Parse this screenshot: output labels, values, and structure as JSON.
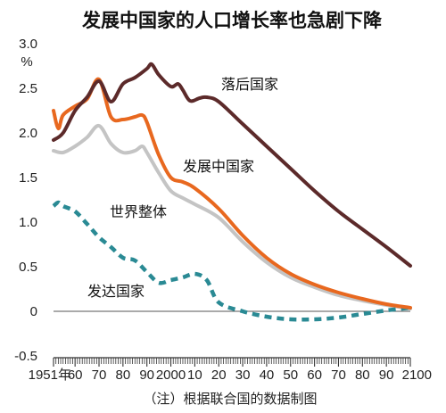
{
  "chart_data": {
    "type": "line",
    "title": "发展中国家的人口增长率也急剧下降",
    "unit": "%",
    "note": "（注）根据联合国的数据制图",
    "ylim": [
      -0.5,
      3.0
    ],
    "y_ticks": [
      "3.0",
      "2.5",
      "2.0",
      "1.5",
      "1.0",
      "0.5",
      "0",
      "-0.5"
    ],
    "y_tick_values": [
      3.0,
      2.5,
      2.0,
      1.5,
      1.0,
      0.5,
      0,
      -0.5
    ],
    "xlim": [
      1951,
      2100
    ],
    "x_ticks": [
      "1951年",
      "60",
      "70",
      "80",
      "90",
      "2000",
      "10",
      "20",
      "30",
      "40",
      "50",
      "60",
      "70",
      "80",
      "90",
      "2100"
    ],
    "x_tick_values": [
      1951,
      1960,
      1970,
      1980,
      1990,
      2000,
      2010,
      2020,
      2030,
      2040,
      2050,
      2060,
      2070,
      2080,
      2090,
      2100
    ],
    "grid": false,
    "zero_line": true,
    "series": [
      {
        "name": "落后国家",
        "color": "#5c2a2a",
        "style": "solid",
        "x": [
          1951,
          1955,
          1960,
          1965,
          1970,
          1975,
          1980,
          1985,
          1990,
          1992,
          1995,
          2000,
          2003,
          2005,
          2008,
          2012,
          2015,
          2020,
          2030,
          2040,
          2050,
          2060,
          2070,
          2080,
          2090,
          2100
        ],
        "values": [
          1.92,
          2.0,
          2.25,
          2.4,
          2.58,
          2.35,
          2.55,
          2.62,
          2.72,
          2.77,
          2.65,
          2.52,
          2.55,
          2.48,
          2.36,
          2.39,
          2.4,
          2.35,
          2.1,
          1.85,
          1.6,
          1.35,
          1.12,
          0.92,
          0.72,
          0.51
        ]
      },
      {
        "name": "发展中国家",
        "color": "#e8681f",
        "style": "solid",
        "x": [
          1951,
          1953,
          1955,
          1960,
          1965,
          1970,
          1975,
          1980,
          1985,
          1988,
          1990,
          1995,
          2000,
          2005,
          2010,
          2020,
          2030,
          2040,
          2050,
          2060,
          2070,
          2080,
          2090,
          2100
        ],
        "values": [
          2.25,
          2.05,
          2.2,
          2.3,
          2.38,
          2.6,
          2.18,
          2.15,
          2.18,
          2.2,
          2.12,
          1.75,
          1.5,
          1.45,
          1.38,
          1.15,
          0.85,
          0.6,
          0.42,
          0.3,
          0.21,
          0.14,
          0.08,
          0.04
        ]
      },
      {
        "name": "世界整体",
        "color": "#c4c4c4",
        "style": "solid",
        "x": [
          1951,
          1955,
          1960,
          1965,
          1970,
          1975,
          1980,
          1985,
          1988,
          1990,
          1995,
          2000,
          2005,
          2010,
          2020,
          2030,
          2040,
          2050,
          2060,
          2070,
          2080,
          2090,
          2100
        ],
        "values": [
          1.8,
          1.78,
          1.85,
          1.95,
          2.08,
          1.88,
          1.78,
          1.8,
          1.85,
          1.78,
          1.55,
          1.35,
          1.27,
          1.2,
          1.05,
          0.78,
          0.55,
          0.38,
          0.27,
          0.18,
          0.12,
          0.07,
          0.03
        ]
      },
      {
        "name": "发达国家",
        "color": "#2a8a94",
        "style": "dashed",
        "x": [
          1951,
          1953,
          1955,
          1960,
          1965,
          1970,
          1975,
          1980,
          1985,
          1990,
          1995,
          2000,
          2005,
          2010,
          2015,
          2020,
          2030,
          2040,
          2050,
          2060,
          2070,
          2080,
          2090,
          2100
        ],
        "values": [
          1.18,
          1.22,
          1.18,
          1.12,
          0.98,
          0.83,
          0.72,
          0.6,
          0.57,
          0.44,
          0.32,
          0.35,
          0.38,
          0.42,
          0.35,
          0.1,
          0.0,
          -0.06,
          -0.09,
          -0.09,
          -0.07,
          -0.03,
          0.01,
          0.04
        ]
      }
    ]
  }
}
